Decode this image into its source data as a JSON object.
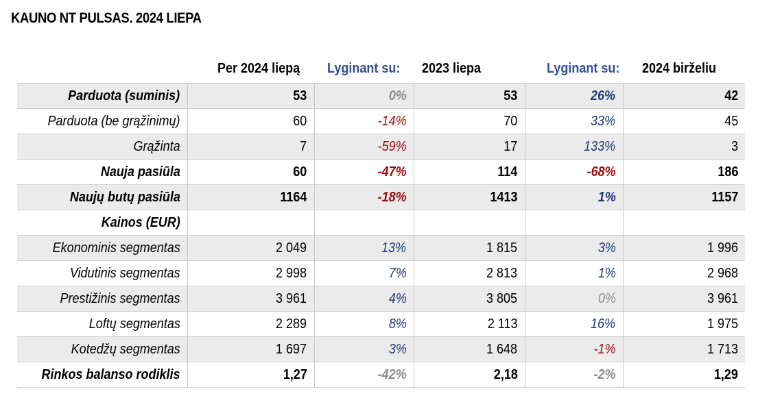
{
  "title": "KAUNO NT PULSAS. 2024 LIEPA",
  "header": {
    "col1": "Per 2024 liepą",
    "col2": "Lyginant su:",
    "col3": "2023 liepa",
    "col4": "Lyginant su:",
    "col5": "2024 birželiu"
  },
  "colors": {
    "positive": "#1f3a7a",
    "negative": "#9b0e0e",
    "neutral": "#8c8c8c",
    "header_blue": "#2f4f8f"
  },
  "rows": [
    {
      "label": "Parduota (suminis)",
      "bold": true,
      "shade": true,
      "cur": "53",
      "vs_prev_year": "0%",
      "prev_year": "53",
      "vs_prev_month": "26%",
      "prev_month": "42",
      "s1": "zero",
      "s2": "pos"
    },
    {
      "label": "Parduota (be grąžinimų)",
      "bold": false,
      "shade": false,
      "cur": "60",
      "vs_prev_year": "-14%",
      "prev_year": "70",
      "vs_prev_month": "33%",
      "prev_month": "45",
      "s1": "neg",
      "s2": "pos"
    },
    {
      "label": "Grąžinta",
      "bold": false,
      "shade": true,
      "cur": "7",
      "vs_prev_year": "-59%",
      "prev_year": "17",
      "vs_prev_month": "133%",
      "prev_month": "3",
      "s1": "neg",
      "s2": "pos"
    },
    {
      "label": "Nauja pasiūla",
      "bold": true,
      "shade": false,
      "cur": "60",
      "vs_prev_year": "-47%",
      "prev_year": "114",
      "vs_prev_month": "-68%",
      "prev_month": "186",
      "s1": "neg",
      "s2": "neg"
    },
    {
      "label": "Naujų butų pasiūla",
      "bold": true,
      "shade": true,
      "cur": "1164",
      "vs_prev_year": "-18%",
      "prev_year": "1413",
      "vs_prev_month": "1%",
      "prev_month": "1157",
      "s1": "neg",
      "s2": "pos"
    },
    {
      "label": "Kainos (EUR)",
      "bold": true,
      "shade": false,
      "cur": "",
      "vs_prev_year": "",
      "prev_year": "",
      "vs_prev_month": "",
      "prev_month": "",
      "s1": "zero",
      "s2": "zero"
    },
    {
      "label": "Ekonominis segmentas",
      "bold": false,
      "shade": true,
      "cur": "2 049",
      "vs_prev_year": "13%",
      "prev_year": "1 815",
      "vs_prev_month": "3%",
      "prev_month": "1 996",
      "s1": "pos",
      "s2": "pos"
    },
    {
      "label": "Vidutinis segmentas",
      "bold": false,
      "shade": false,
      "cur": "2 998",
      "vs_prev_year": "7%",
      "prev_year": "2 813",
      "vs_prev_month": "1%",
      "prev_month": "2 968",
      "s1": "pos",
      "s2": "pos"
    },
    {
      "label": "Prestižinis segmentas",
      "bold": false,
      "shade": true,
      "cur": "3 961",
      "vs_prev_year": "4%",
      "prev_year": "3 805",
      "vs_prev_month": "0%",
      "prev_month": "3 961",
      "s1": "pos",
      "s2": "zero"
    },
    {
      "label": "Loftų segmentas",
      "bold": false,
      "shade": false,
      "cur": "2 289",
      "vs_prev_year": "8%",
      "prev_year": "2 113",
      "vs_prev_month": "16%",
      "prev_month": "1 975",
      "s1": "pos",
      "s2": "pos"
    },
    {
      "label": "Kotedžų segmentas",
      "bold": false,
      "shade": true,
      "cur": "1 697",
      "vs_prev_year": "3%",
      "prev_year": "1 648",
      "vs_prev_month": "-1%",
      "prev_month": "1 713",
      "s1": "pos",
      "s2": "neg"
    },
    {
      "label": "Rinkos balanso rodiklis",
      "bold": true,
      "shade": false,
      "cur": "1,27",
      "vs_prev_year": "-42%",
      "prev_year": "2,18",
      "vs_prev_month": "-2%",
      "prev_month": "1,29",
      "s1": "zero",
      "s2": "zero"
    }
  ]
}
